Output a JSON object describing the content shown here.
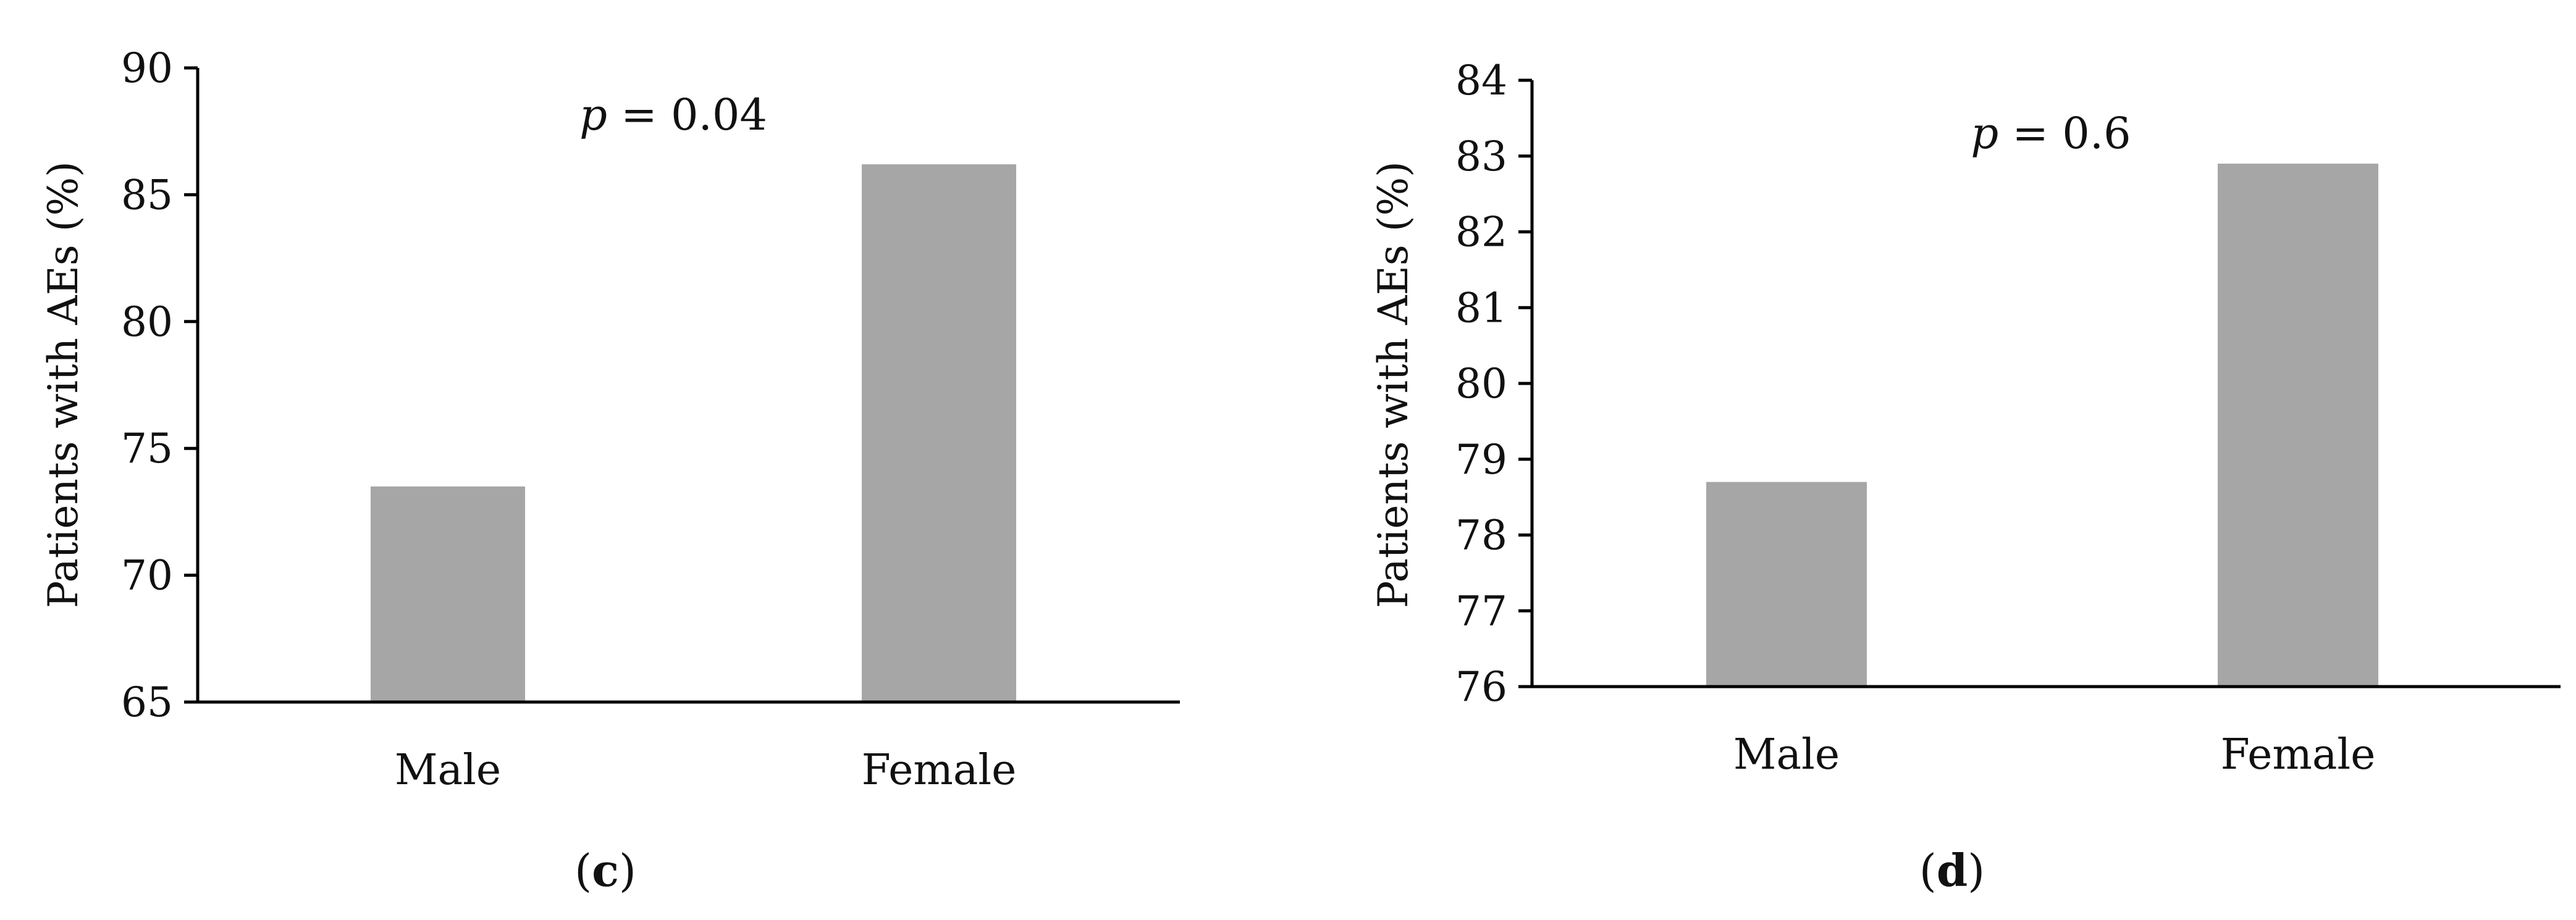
{
  "chart_data": [
    {
      "type": "bar",
      "panel_label": "c",
      "categories": [
        "Male",
        "Female"
      ],
      "values": [
        73.5,
        86.2
      ],
      "ylabel": "Patients with AEs (%)",
      "ylim": [
        65,
        90
      ],
      "yticks": [
        65,
        70,
        75,
        80,
        85,
        90
      ],
      "annotation": {
        "italic": "p",
        "rest": " = 0.04"
      },
      "bar_color": "#a6a6a6",
      "grid": false
    },
    {
      "type": "bar",
      "panel_label": "d",
      "categories": [
        "Male",
        "Female"
      ],
      "values": [
        78.7,
        82.9
      ],
      "ylabel": "Patients with AEs (%)",
      "ylim": [
        76,
        84
      ],
      "yticks": [
        76,
        77,
        78,
        79,
        80,
        81,
        82,
        83,
        84
      ],
      "annotation": {
        "italic": "p",
        "rest": " = 0.6"
      },
      "bar_color": "#a6a6a6",
      "grid": false
    }
  ]
}
